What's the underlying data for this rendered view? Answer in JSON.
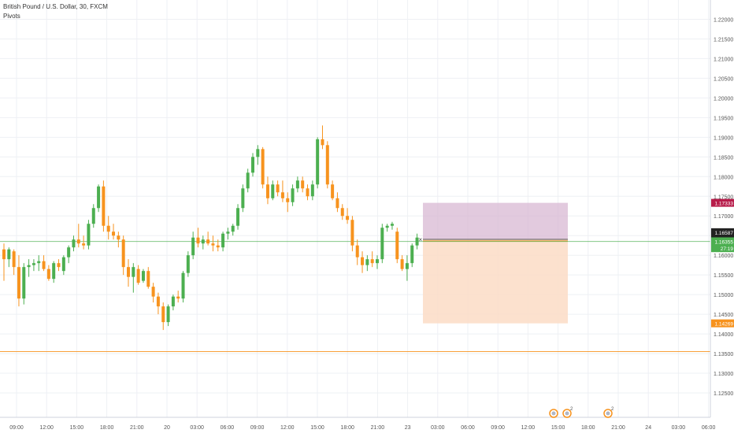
{
  "legend": {
    "symbol_title": "British Pound / U.S. Dollar, 30, FXCM",
    "indicator": "Pivots"
  },
  "colors": {
    "up": "#4caf50",
    "down": "#f7931e",
    "grid": "#eef0f4",
    "axis_text": "#555555",
    "stop_zone": "#d8b8d3",
    "target_zone": "#fcdcc6",
    "pivot_line": "#f7931e",
    "price_line": "#4caf50"
  },
  "chart_data": {
    "type": "candlestick",
    "symbol": "GBPUSD",
    "timeframe": "30",
    "x_labels": [
      "09:00",
      "12:00",
      "15:00",
      "18:00",
      "21:00",
      "20",
      "03:00",
      "06:00",
      "09:00",
      "12:00",
      "15:00",
      "18:00",
      "21:00",
      "23",
      "03:00",
      "06:00",
      "09:00",
      "12:00",
      "15:00",
      "18:00",
      "21:00",
      "24",
      "03:00",
      "06:00"
    ],
    "y_ticks": [
      "1.22000",
      "1.21500",
      "1.21000",
      "1.20500",
      "1.20000",
      "1.19500",
      "1.19000",
      "1.18500",
      "1.18000",
      "1.17500",
      "1.17000",
      "1.16500",
      "1.16000",
      "1.15500",
      "1.15000",
      "1.14500",
      "1.14000",
      "1.13500",
      "1.13000",
      "1.12500"
    ],
    "ylim": [
      1.1222,
      1.2229
    ],
    "candles": [
      {
        "o": 1.1615,
        "h": 1.163,
        "l": 1.1535,
        "c": 1.159
      },
      {
        "o": 1.159,
        "h": 1.162,
        "l": 1.157,
        "c": 1.1615
      },
      {
        "o": 1.161,
        "h": 1.1615,
        "l": 1.155,
        "c": 1.157
      },
      {
        "o": 1.157,
        "h": 1.16,
        "l": 1.147,
        "c": 1.149
      },
      {
        "o": 1.149,
        "h": 1.158,
        "l": 1.1475,
        "c": 1.157
      },
      {
        "o": 1.157,
        "h": 1.159,
        "l": 1.1545,
        "c": 1.1575
      },
      {
        "o": 1.1575,
        "h": 1.159,
        "l": 1.156,
        "c": 1.158
      },
      {
        "o": 1.158,
        "h": 1.16,
        "l": 1.156,
        "c": 1.1585
      },
      {
        "o": 1.1585,
        "h": 1.16,
        "l": 1.156,
        "c": 1.1565
      },
      {
        "o": 1.1565,
        "h": 1.1575,
        "l": 1.1535,
        "c": 1.154
      },
      {
        "o": 1.154,
        "h": 1.1585,
        "l": 1.153,
        "c": 1.158
      },
      {
        "o": 1.158,
        "h": 1.159,
        "l": 1.156,
        "c": 1.157
      },
      {
        "o": 1.156,
        "h": 1.16,
        "l": 1.155,
        "c": 1.1595
      },
      {
        "o": 1.1595,
        "h": 1.1625,
        "l": 1.158,
        "c": 1.162
      },
      {
        "o": 1.162,
        "h": 1.165,
        "l": 1.161,
        "c": 1.164
      },
      {
        "o": 1.164,
        "h": 1.168,
        "l": 1.162,
        "c": 1.163
      },
      {
        "o": 1.163,
        "h": 1.165,
        "l": 1.1615,
        "c": 1.1625
      },
      {
        "o": 1.1625,
        "h": 1.169,
        "l": 1.1615,
        "c": 1.168
      },
      {
        "o": 1.168,
        "h": 1.173,
        "l": 1.167,
        "c": 1.172
      },
      {
        "o": 1.172,
        "h": 1.178,
        "l": 1.171,
        "c": 1.1775
      },
      {
        "o": 1.1775,
        "h": 1.179,
        "l": 1.166,
        "c": 1.1675
      },
      {
        "o": 1.1675,
        "h": 1.17,
        "l": 1.164,
        "c": 1.166
      },
      {
        "o": 1.166,
        "h": 1.168,
        "l": 1.164,
        "c": 1.165
      },
      {
        "o": 1.165,
        "h": 1.166,
        "l": 1.162,
        "c": 1.164
      },
      {
        "o": 1.164,
        "h": 1.165,
        "l": 1.155,
        "c": 1.157
      },
      {
        "o": 1.157,
        "h": 1.159,
        "l": 1.152,
        "c": 1.1545
      },
      {
        "o": 1.1545,
        "h": 1.158,
        "l": 1.1505,
        "c": 1.157
      },
      {
        "o": 1.1565,
        "h": 1.1575,
        "l": 1.1525,
        "c": 1.153
      },
      {
        "o": 1.1535,
        "h": 1.1565,
        "l": 1.153,
        "c": 1.156
      },
      {
        "o": 1.156,
        "h": 1.157,
        "l": 1.1515,
        "c": 1.152
      },
      {
        "o": 1.152,
        "h": 1.153,
        "l": 1.148,
        "c": 1.1495
      },
      {
        "o": 1.1495,
        "h": 1.1505,
        "l": 1.145,
        "c": 1.147
      },
      {
        "o": 1.147,
        "h": 1.148,
        "l": 1.141,
        "c": 1.143
      },
      {
        "o": 1.143,
        "h": 1.1475,
        "l": 1.142,
        "c": 1.147
      },
      {
        "o": 1.147,
        "h": 1.15,
        "l": 1.146,
        "c": 1.1495
      },
      {
        "o": 1.1495,
        "h": 1.151,
        "l": 1.148,
        "c": 1.149
      },
      {
        "o": 1.149,
        "h": 1.156,
        "l": 1.148,
        "c": 1.1555
      },
      {
        "o": 1.1555,
        "h": 1.161,
        "l": 1.1545,
        "c": 1.16
      },
      {
        "o": 1.16,
        "h": 1.166,
        "l": 1.159,
        "c": 1.1645
      },
      {
        "o": 1.1645,
        "h": 1.167,
        "l": 1.162,
        "c": 1.163
      },
      {
        "o": 1.163,
        "h": 1.165,
        "l": 1.1615,
        "c": 1.164
      },
      {
        "o": 1.164,
        "h": 1.166,
        "l": 1.1625,
        "c": 1.163
      },
      {
        "o": 1.163,
        "h": 1.165,
        "l": 1.161,
        "c": 1.1625
      },
      {
        "o": 1.1625,
        "h": 1.164,
        "l": 1.161,
        "c": 1.162
      },
      {
        "o": 1.162,
        "h": 1.166,
        "l": 1.161,
        "c": 1.1655
      },
      {
        "o": 1.1655,
        "h": 1.167,
        "l": 1.164,
        "c": 1.166
      },
      {
        "o": 1.166,
        "h": 1.168,
        "l": 1.165,
        "c": 1.1675
      },
      {
        "o": 1.1675,
        "h": 1.173,
        "l": 1.1665,
        "c": 1.172
      },
      {
        "o": 1.172,
        "h": 1.178,
        "l": 1.171,
        "c": 1.177
      },
      {
        "o": 1.177,
        "h": 1.182,
        "l": 1.176,
        "c": 1.181
      },
      {
        "o": 1.181,
        "h": 1.186,
        "l": 1.18,
        "c": 1.185
      },
      {
        "o": 1.185,
        "h": 1.188,
        "l": 1.183,
        "c": 1.187
      },
      {
        "o": 1.187,
        "h": 1.1875,
        "l": 1.177,
        "c": 1.178
      },
      {
        "o": 1.178,
        "h": 1.18,
        "l": 1.173,
        "c": 1.1745
      },
      {
        "o": 1.1745,
        "h": 1.179,
        "l": 1.174,
        "c": 1.178
      },
      {
        "o": 1.178,
        "h": 1.179,
        "l": 1.175,
        "c": 1.176
      },
      {
        "o": 1.176,
        "h": 1.179,
        "l": 1.1735,
        "c": 1.1745
      },
      {
        "o": 1.1745,
        "h": 1.176,
        "l": 1.171,
        "c": 1.1735
      },
      {
        "o": 1.1735,
        "h": 1.178,
        "l": 1.1725,
        "c": 1.177
      },
      {
        "o": 1.177,
        "h": 1.18,
        "l": 1.176,
        "c": 1.179
      },
      {
        "o": 1.179,
        "h": 1.18,
        "l": 1.176,
        "c": 1.177
      },
      {
        "o": 1.177,
        "h": 1.178,
        "l": 1.174,
        "c": 1.175
      },
      {
        "o": 1.175,
        "h": 1.179,
        "l": 1.174,
        "c": 1.178
      },
      {
        "o": 1.178,
        "h": 1.19,
        "l": 1.177,
        "c": 1.1895
      },
      {
        "o": 1.1895,
        "h": 1.193,
        "l": 1.187,
        "c": 1.188
      },
      {
        "o": 1.188,
        "h": 1.189,
        "l": 1.177,
        "c": 1.178
      },
      {
        "o": 1.178,
        "h": 1.179,
        "l": 1.174,
        "c": 1.1745
      },
      {
        "o": 1.1745,
        "h": 1.176,
        "l": 1.171,
        "c": 1.172
      },
      {
        "o": 1.172,
        "h": 1.173,
        "l": 1.169,
        "c": 1.17
      },
      {
        "o": 1.17,
        "h": 1.172,
        "l": 1.168,
        "c": 1.169
      },
      {
        "o": 1.169,
        "h": 1.17,
        "l": 1.161,
        "c": 1.1625
      },
      {
        "o": 1.1625,
        "h": 1.164,
        "l": 1.1575,
        "c": 1.1595
      },
      {
        "o": 1.1595,
        "h": 1.161,
        "l": 1.1555,
        "c": 1.1575
      },
      {
        "o": 1.1575,
        "h": 1.16,
        "l": 1.156,
        "c": 1.159
      },
      {
        "o": 1.159,
        "h": 1.161,
        "l": 1.157,
        "c": 1.158
      },
      {
        "o": 1.158,
        "h": 1.16,
        "l": 1.1565,
        "c": 1.159
      },
      {
        "o": 1.159,
        "h": 1.168,
        "l": 1.158,
        "c": 1.167
      },
      {
        "o": 1.167,
        "h": 1.168,
        "l": 1.166,
        "c": 1.1675
      },
      {
        "o": 1.1675,
        "h": 1.1685,
        "l": 1.1665,
        "c": 1.168
      },
      {
        "o": 1.166,
        "h": 1.167,
        "l": 1.158,
        "c": 1.159
      },
      {
        "o": 1.159,
        "h": 1.16,
        "l": 1.156,
        "c": 1.1565
      },
      {
        "o": 1.1565,
        "h": 1.16,
        "l": 1.1535,
        "c": 1.158
      },
      {
        "o": 1.158,
        "h": 1.163,
        "l": 1.157,
        "c": 1.1625
      },
      {
        "o": 1.1625,
        "h": 1.1655,
        "l": 1.1615,
        "c": 1.1645
      }
    ],
    "pivot_level": 1.1355,
    "price_level": 1.1635,
    "position": {
      "entry": 1.16404,
      "stop": 1.17333,
      "target": 1.14269
    },
    "price_labels": [
      {
        "value": "1.17333",
        "price": 1.17333,
        "color": "#b71c4a"
      },
      {
        "value": "1.16587",
        "price": 1.16587,
        "color": "#222222"
      },
      {
        "value": "1.16404",
        "price": 1.16404,
        "color": "#222222"
      },
      {
        "value": "1.16355",
        "price": 1.16355,
        "color": "#4caf50"
      },
      {
        "value": "27:19",
        "price": 1.1618,
        "color": "#4caf50"
      },
      {
        "value": "1.14269",
        "price": 1.14269,
        "color": "#f7931e"
      }
    ],
    "event_markers": [
      {
        "at_label": "15:00",
        "count": ""
      },
      {
        "at_label": "15:00",
        "count": "2"
      },
      {
        "at_label": "21:00",
        "count": "2"
      }
    ]
  }
}
